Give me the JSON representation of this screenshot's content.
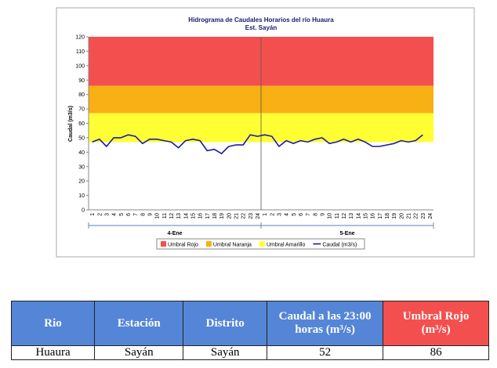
{
  "chart_data": {
    "type": "line",
    "title": "Hidrograma de Caudales Horarios del río Huaura",
    "subtitle": "Est. Sayán",
    "y_label": "Caudal (m3/s)",
    "categories": [
      "1",
      "2",
      "3",
      "4",
      "5",
      "6",
      "7",
      "8",
      "9",
      "10",
      "11",
      "12",
      "13",
      "14",
      "15",
      "16",
      "17",
      "18",
      "19",
      "20",
      "21",
      "22",
      "23",
      "24",
      "1",
      "2",
      "3",
      "4",
      "5",
      "6",
      "7",
      "8",
      "9",
      "10",
      "11",
      "12",
      "13",
      "14",
      "15",
      "16",
      "17",
      "18",
      "19",
      "20",
      "21",
      "22",
      "23",
      "24"
    ],
    "groups": [
      "4-Ene",
      "5-Ene"
    ],
    "bands": [
      {
        "name": "Umbral Rojo",
        "color": "#f44f4f",
        "from": 86,
        "to": 120
      },
      {
        "name": "Umbral Naranja",
        "color": "#f8b014",
        "from": 67,
        "to": 86
      },
      {
        "name": "Umbral Amarillo",
        "color": "#ffff33",
        "from": 47,
        "to": 67
      }
    ],
    "series": [
      {
        "name": "Caudal (m3/s)",
        "color": "#1a1aa8",
        "values": [
          47,
          49,
          44,
          50,
          50,
          52,
          51,
          46,
          49,
          49,
          48,
          47,
          43,
          48,
          49,
          48,
          41,
          42,
          39,
          44,
          45,
          45,
          52,
          51,
          52,
          51,
          44,
          48,
          46,
          48,
          47,
          49,
          50,
          46,
          47,
          49,
          47,
          49,
          47,
          44,
          44,
          45,
          46,
          48,
          47,
          48,
          52,
          null
        ]
      }
    ],
    "ylim": [
      0,
      120
    ],
    "yticks": [
      0,
      10,
      20,
      30,
      40,
      50,
      60,
      70,
      80,
      90,
      100,
      110,
      120
    ]
  },
  "table": {
    "headers": [
      "Rio",
      "Estación",
      "Distrito",
      "Caudal a las 23:00 horas (m³/s)",
      "Umbral Rojo (m³/s)"
    ],
    "rows": [
      [
        "Huaura",
        "Sayán",
        "Sayán",
        "52",
        "86"
      ]
    ]
  }
}
